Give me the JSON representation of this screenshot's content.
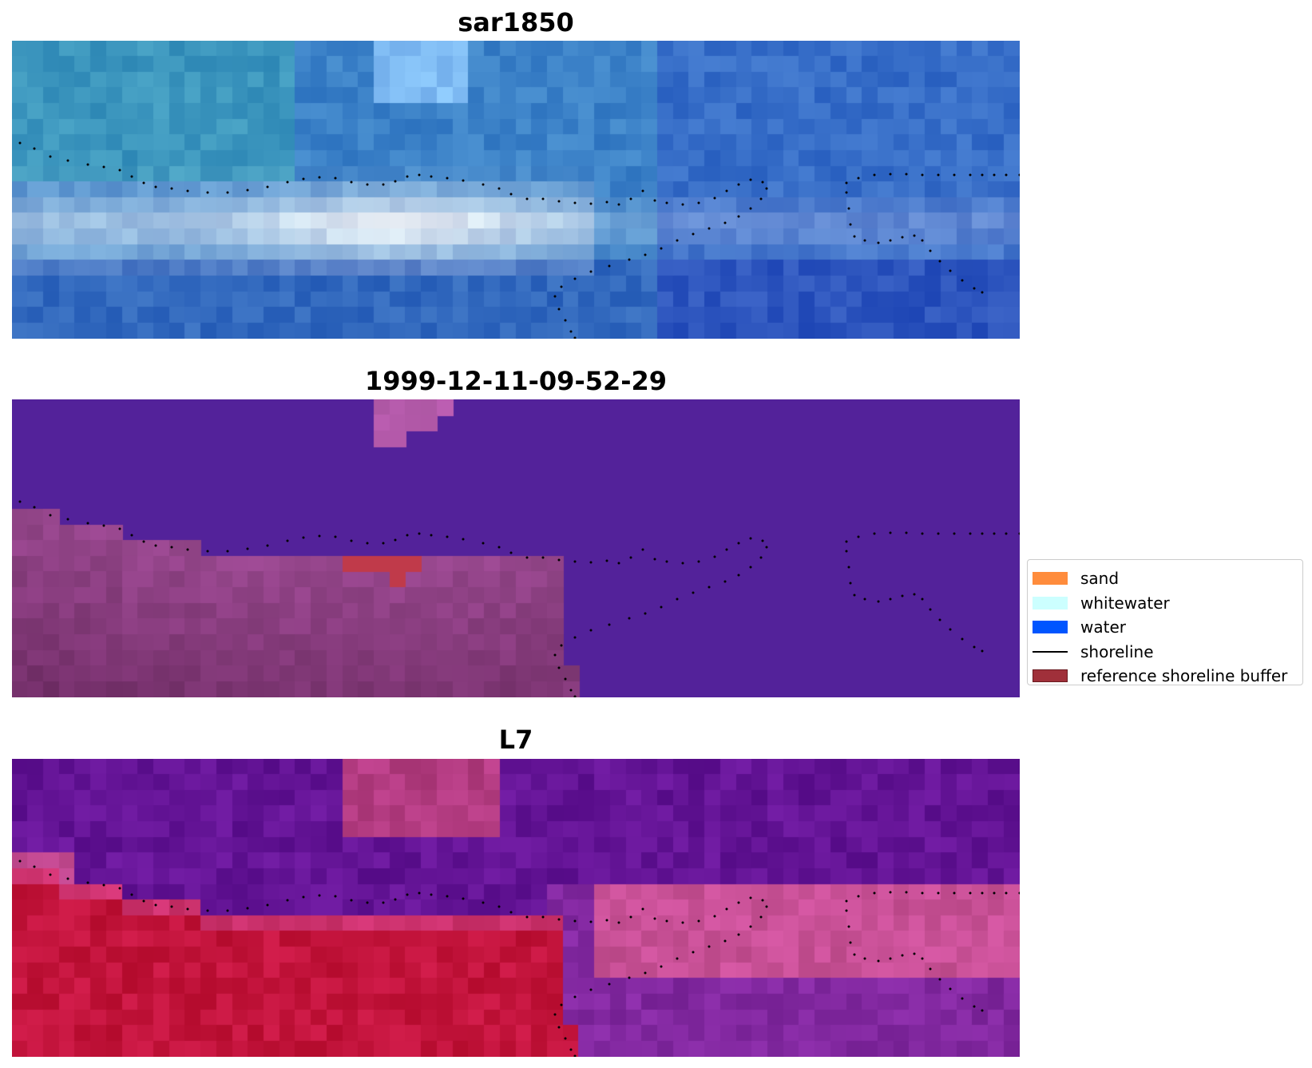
{
  "panels": [
    {
      "title": "sar1850",
      "colormap": "sar-rgb"
    },
    {
      "title": "1999-12-11-09-52-29",
      "colormap": "classification"
    },
    {
      "title": "L7",
      "colormap": "index"
    }
  ],
  "legend": {
    "items": [
      {
        "label": "sand",
        "color": "#ff8c3c",
        "kind": "patch"
      },
      {
        "label": "whitewater",
        "color": "#ccffff",
        "kind": "patch"
      },
      {
        "label": "water",
        "color": "#0055ff",
        "kind": "patch"
      },
      {
        "label": "shoreline",
        "color": "#000000",
        "kind": "line"
      },
      {
        "label": "reference shoreline buffer",
        "color": "#a0303a",
        "kind": "patch"
      }
    ]
  },
  "chart_data": {
    "type": "heatmap",
    "grid": false,
    "legend_position": "center-right",
    "series": [
      {
        "name": "shoreline",
        "style": "dotted",
        "color": "#000000"
      }
    ],
    "colors": {
      "water_class": "#53229a",
      "sand_class": "#8a3d86",
      "buffer_overlap": "#c03a4a"
    }
  }
}
